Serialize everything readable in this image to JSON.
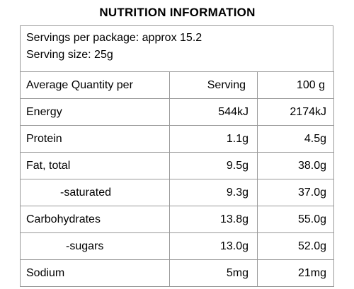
{
  "title": "NUTRITION INFORMATION",
  "servings_per_package": "Servings per package: approx 15.2",
  "serving_size": "Serving size: 25g",
  "columns": {
    "label": "Average Quantity per",
    "serving": "Serving",
    "per100": "100 g"
  },
  "rows": [
    {
      "name": "Energy",
      "serving": "544kJ",
      "per100": "2174kJ"
    },
    {
      "name": "Protein",
      "serving": "1.1g",
      "per100": "4.5g"
    },
    {
      "name": "Fat, total",
      "serving": "9.5g",
      "per100": "38.0g"
    },
    {
      "name": "-saturated",
      "serving": "9.3g",
      "per100": "37.0g"
    },
    {
      "name": "Carbohydrates",
      "serving": "13.8g",
      "per100": "55.0g"
    },
    {
      "name": "-sugars",
      "serving": "13.0g",
      "per100": "52.0g"
    },
    {
      "name": "Sodium",
      "serving": "5mg",
      "per100": "21mg"
    }
  ]
}
